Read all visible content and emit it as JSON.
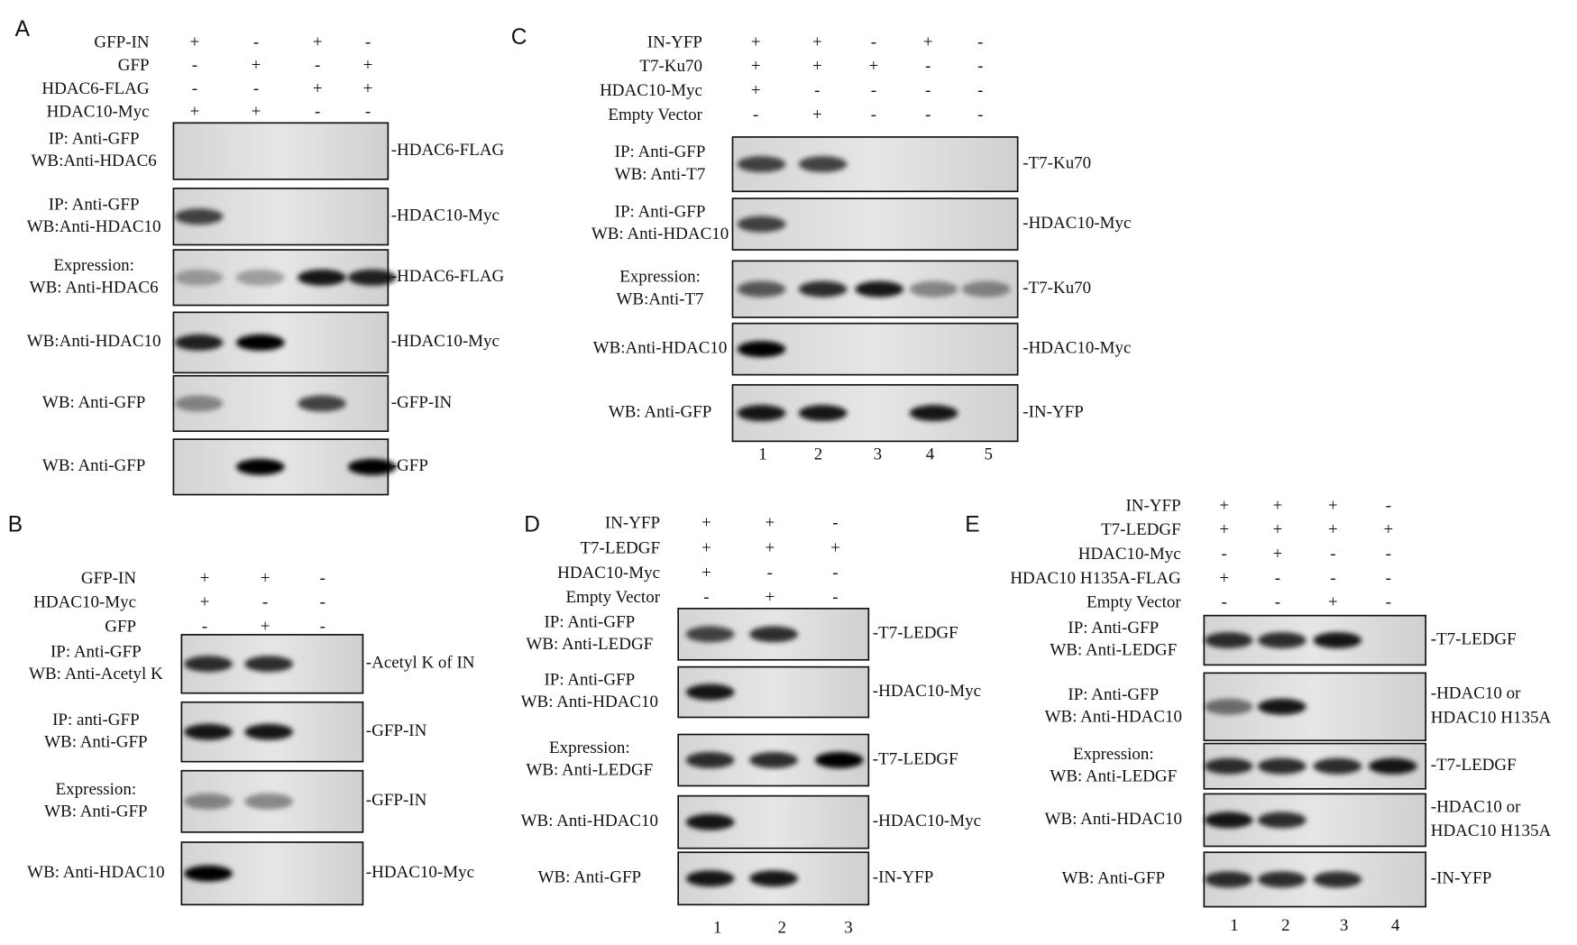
{
  "panels": [
    {
      "letter": "A",
      "conditions": [
        {
          "name": "GFP-IN",
          "signs": [
            "+",
            "-",
            "+",
            "-"
          ]
        },
        {
          "name": "GFP",
          "signs": [
            "-",
            "+",
            "-",
            "+"
          ]
        },
        {
          "name": "HDAC6-FLAG",
          "signs": [
            "-",
            "-",
            "+",
            "+"
          ]
        },
        {
          "name": "HDAC10-Myc",
          "signs": [
            "+",
            "+",
            "-",
            "-"
          ]
        }
      ],
      "blots": [
        {
          "left": [
            "IP: Anti-GFP",
            "WB:Anti-HDAC6"
          ],
          "right": [
            "-HDAC6-FLAG"
          ]
        },
        {
          "left": [
            "IP: Anti-GFP",
            "WB:Anti-HDAC10"
          ],
          "right": [
            "-HDAC10-Myc"
          ]
        },
        {
          "left": [
            "Expression:",
            "WB: Anti-HDAC6"
          ],
          "right": [
            "-HDAC6-FLAG"
          ]
        },
        {
          "left": [
            "WB:Anti-HDAC10"
          ],
          "right": [
            "-HDAC10-Myc"
          ]
        },
        {
          "left": [
            "WB: Anti-GFP"
          ],
          "right": [
            "-GFP-IN"
          ]
        },
        {
          "left": [
            "WB: Anti-GFP"
          ],
          "right": [
            "-GFP"
          ]
        }
      ],
      "lanes": []
    },
    {
      "letter": "B",
      "conditions": [
        {
          "name": "GFP-IN",
          "signs": [
            "+",
            "+",
            "-"
          ]
        },
        {
          "name": "HDAC10-Myc",
          "signs": [
            "+",
            "-",
            "-"
          ]
        },
        {
          "name": "GFP",
          "signs": [
            "-",
            "+",
            "-"
          ]
        }
      ],
      "blots": [
        {
          "left": [
            "IP: Anti-GFP",
            "WB: Anti-Acetyl K"
          ],
          "right": [
            "-Acetyl K of IN"
          ]
        },
        {
          "left": [
            "IP: anti-GFP",
            "WB: Anti-GFP"
          ],
          "right": [
            "-GFP-IN"
          ]
        },
        {
          "left": [
            "Expression:",
            "WB: Anti-GFP"
          ],
          "right": [
            "-GFP-IN"
          ]
        },
        {
          "left": [
            "WB: Anti-HDAC10"
          ],
          "right": [
            "-HDAC10-Myc"
          ]
        }
      ],
      "lanes": []
    },
    {
      "letter": "C",
      "conditions": [
        {
          "name": "IN-YFP",
          "signs": [
            "+",
            "+",
            "-",
            "+",
            "-"
          ]
        },
        {
          "name": "T7-Ku70",
          "signs": [
            "+",
            "+",
            "+",
            "-",
            "-"
          ]
        },
        {
          "name": "HDAC10-Myc",
          "signs": [
            "+",
            "-",
            "-",
            "-",
            "-"
          ]
        },
        {
          "name": "Empty Vector",
          "signs": [
            "-",
            "+",
            "-",
            "-",
            "-"
          ]
        }
      ],
      "blots": [
        {
          "left": [
            "IP: Anti-GFP",
            "WB: Anti-T7"
          ],
          "right": [
            "-T7-Ku70"
          ]
        },
        {
          "left": [
            "IP: Anti-GFP",
            "WB: Anti-HDAC10"
          ],
          "right": [
            "-HDAC10-Myc"
          ]
        },
        {
          "left": [
            "Expression:",
            "WB:Anti-T7"
          ],
          "right": [
            "-T7-Ku70"
          ]
        },
        {
          "left": [
            "WB:Anti-HDAC10"
          ],
          "right": [
            "-HDAC10-Myc"
          ]
        },
        {
          "left": [
            "WB: Anti-GFP"
          ],
          "right": [
            "-IN-YFP"
          ]
        }
      ],
      "lanes": [
        "1",
        "2",
        "3",
        "4",
        "5"
      ]
    },
    {
      "letter": "D",
      "conditions": [
        {
          "name": "IN-YFP",
          "signs": [
            "+",
            "+",
            "-"
          ]
        },
        {
          "name": "T7-LEDGF",
          "signs": [
            "+",
            "+",
            "+"
          ]
        },
        {
          "name": "HDAC10-Myc",
          "signs": [
            "+",
            "-",
            "-"
          ]
        },
        {
          "name": "Empty Vector",
          "signs": [
            "-",
            "+",
            "-"
          ]
        }
      ],
      "blots": [
        {
          "left": [
            "IP: Anti-GFP",
            "WB: Anti-LEDGF"
          ],
          "right": [
            "-T7-LEDGF"
          ]
        },
        {
          "left": [
            "IP: Anti-GFP",
            "WB: Anti-HDAC10"
          ],
          "right": [
            "-HDAC10-Myc"
          ]
        },
        {
          "left": [
            "Expression:",
            "WB: Anti-LEDGF"
          ],
          "right": [
            "-T7-LEDGF"
          ]
        },
        {
          "left": [
            "WB: Anti-HDAC10"
          ],
          "right": [
            "-HDAC10-Myc"
          ]
        },
        {
          "left": [
            "WB: Anti-GFP"
          ],
          "right": [
            "-IN-YFP"
          ]
        }
      ],
      "lanes": [
        "1",
        "2",
        "3"
      ]
    },
    {
      "letter": "E",
      "conditions": [
        {
          "name": "IN-YFP",
          "signs": [
            "+",
            "+",
            "+",
            "-"
          ]
        },
        {
          "name": "T7-LEDGF",
          "signs": [
            "+",
            "+",
            "+",
            "+"
          ]
        },
        {
          "name": "HDAC10-Myc",
          "signs": [
            "-",
            "+",
            "-",
            "-"
          ]
        },
        {
          "name": "HDAC10 H135A-FLAG",
          "signs": [
            "+",
            "-",
            "-",
            "-"
          ]
        },
        {
          "name": "Empty Vector",
          "signs": [
            "-",
            "-",
            "+",
            "-"
          ]
        }
      ],
      "blots": [
        {
          "left": [
            "IP: Anti-GFP",
            "WB: Anti-LEDGF"
          ],
          "right": [
            "-T7-LEDGF"
          ]
        },
        {
          "left": [
            "IP: Anti-GFP",
            "WB: Anti-HDAC10"
          ],
          "right": [
            "-HDAC10 or",
            "HDAC10 H135A"
          ]
        },
        {
          "left": [
            "Expression:",
            "WB: Anti-LEDGF"
          ],
          "right": [
            "-T7-LEDGF"
          ]
        },
        {
          "left": [
            "WB: Anti-HDAC10"
          ],
          "right": [
            "-HDAC10 or",
            "HDAC10 H135A"
          ]
        },
        {
          "left": [
            "WB: Anti-GFP"
          ],
          "right": [
            "-IN-YFP"
          ]
        }
      ],
      "lanes": [
        "1",
        "2",
        "3",
        "4"
      ]
    }
  ]
}
